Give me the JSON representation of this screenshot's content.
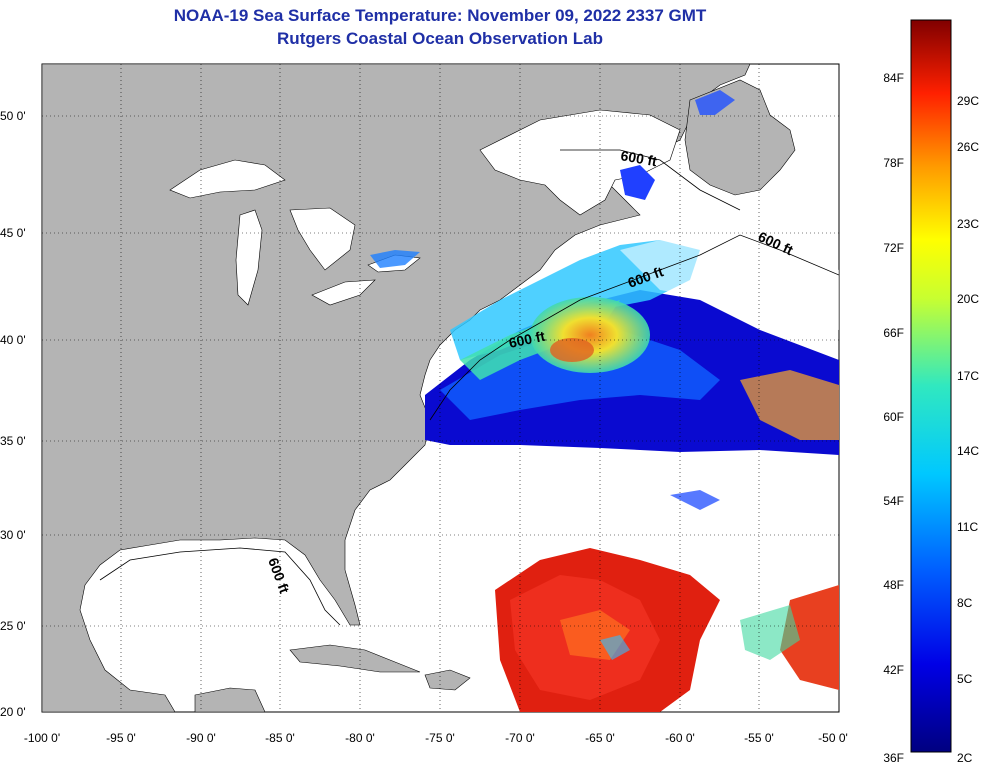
{
  "title_line1": "NOAA-19 Sea Surface Temperature:  November 09, 2022 2337 GMT",
  "title_line2": "Rutgers Coastal Ocean Observation Lab",
  "lat_labels": [
    "50 0'",
    "45 0'",
    "40 0'",
    "35 0'",
    "30 0'",
    "25 0'",
    "20 0'"
  ],
  "lon_labels": [
    "-100 0'",
    "-95 0'",
    "-90 0'",
    "-85 0'",
    "-80 0'",
    "-75 0'",
    "-70 0'",
    "-65 0'",
    "-60 0'",
    "-55 0'",
    "-50 0'"
  ],
  "contour_label": "600 ft",
  "colorbar": {
    "fahrenheit": [
      "84F",
      "78F",
      "72F",
      "66F",
      "60F",
      "54F",
      "48F",
      "42F",
      "36F"
    ],
    "celsius": [
      "29C",
      "26C",
      "23C",
      "20C",
      "17C",
      "14C",
      "11C",
      "8C",
      "5C",
      "2C"
    ]
  },
  "colors": {
    "land": "#b4b4b4",
    "ocean_cloud": "#ffffff",
    "title": "#1f2fa6"
  }
}
